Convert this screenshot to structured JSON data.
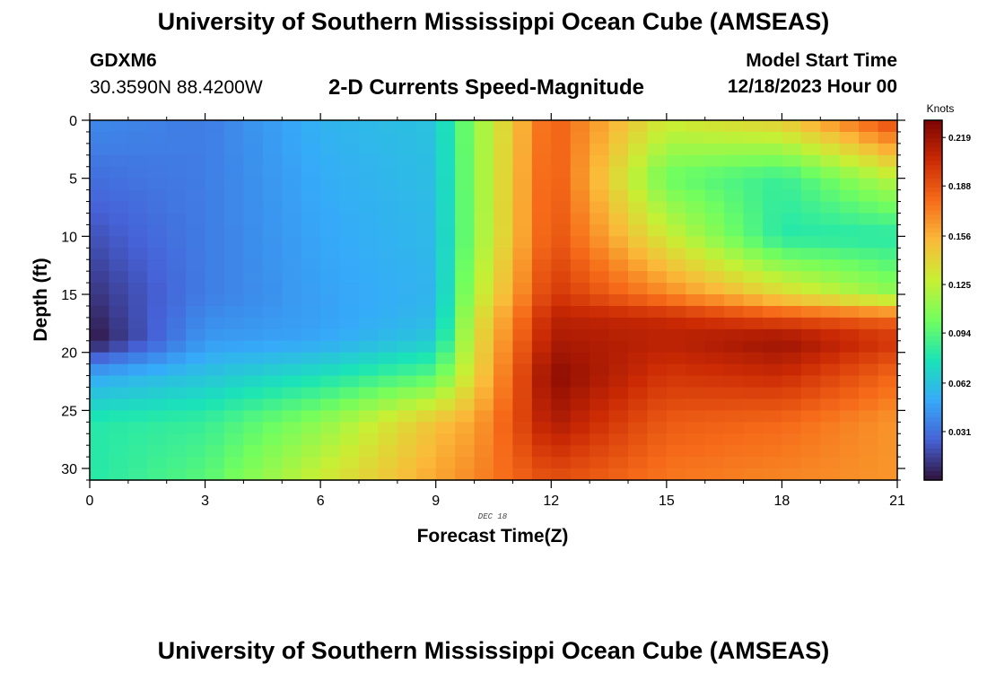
{
  "header": {
    "title": "University of Southern Mississippi Ocean Cube (AMSEAS)",
    "station": "GDXM6",
    "coords": "30.3590N  88.4200W",
    "subtitle": "2-D Currents Speed-Magnitude",
    "model_label": "Model Start Time",
    "model_time": "12/18/2023 Hour 00"
  },
  "footer": {
    "title": "University of Southern Mississippi Ocean Cube (AMSEAS)"
  },
  "chart_data": {
    "type": "heatmap",
    "title": "2-D Currents Speed-Magnitude",
    "xlabel": "Forecast Time(Z)",
    "ylabel": "Depth (ft)",
    "xlim": [
      0,
      21
    ],
    "ylim": [
      0,
      31
    ],
    "y_inverted": true,
    "x_ticks": [
      0,
      3,
      6,
      9,
      12,
      15,
      18,
      21
    ],
    "y_ticks": [
      0,
      5,
      10,
      15,
      20,
      25,
      30
    ],
    "date_annotation": "DEC 18",
    "colorbar": {
      "label": "Knots",
      "range": [
        0.0,
        0.23
      ],
      "ticks": [
        "0.031",
        "0.062",
        "0.094",
        "0.125",
        "0.156",
        "0.188",
        "0.219"
      ]
    },
    "colormap": [
      "#30123b",
      "#4662d7",
      "#36aaf9",
      "#1ae4b6",
      "#72fe5e",
      "#c8ef34",
      "#faba39",
      "#f66b19",
      "#cb2a04",
      "#7a0403"
    ],
    "x": [
      0,
      3,
      6,
      9,
      10,
      12,
      15,
      18,
      21
    ],
    "depth": [
      0,
      5,
      10,
      15,
      17,
      19,
      22,
      26,
      31
    ],
    "values": [
      [
        0.04,
        0.035,
        0.055,
        0.062,
        0.11,
        0.185,
        0.13,
        0.145,
        0.195
      ],
      [
        0.03,
        0.035,
        0.052,
        0.06,
        0.11,
        0.188,
        0.1,
        0.085,
        0.125
      ],
      [
        0.02,
        0.035,
        0.05,
        0.058,
        0.11,
        0.19,
        0.13,
        0.08,
        0.08
      ],
      [
        0.01,
        0.035,
        0.048,
        0.056,
        0.12,
        0.2,
        0.17,
        0.14,
        0.11
      ],
      [
        0.005,
        0.04,
        0.048,
        0.058,
        0.13,
        0.21,
        0.205,
        0.19,
        0.18
      ],
      [
        0.0,
        0.045,
        0.05,
        0.065,
        0.135,
        0.215,
        0.21,
        0.22,
        0.2
      ],
      [
        0.05,
        0.062,
        0.075,
        0.095,
        0.14,
        0.225,
        0.2,
        0.205,
        0.18
      ],
      [
        0.08,
        0.085,
        0.11,
        0.15,
        0.16,
        0.215,
        0.185,
        0.18,
        0.165
      ],
      [
        0.08,
        0.095,
        0.13,
        0.16,
        0.17,
        0.19,
        0.175,
        0.17,
        0.165
      ]
    ]
  }
}
